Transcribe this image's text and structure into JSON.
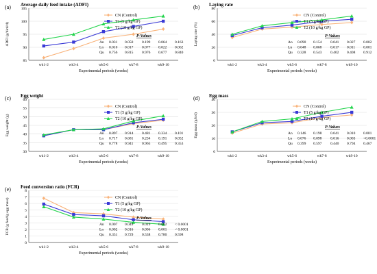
{
  "chart_data": [
    {
      "type": "line",
      "panel_label": "(a)",
      "title": "Average daily feed intake (ADFI)",
      "xlabel": "Experimental periods (weeks)",
      "ylabel": "ADFI (g/bird/d)",
      "categories": [
        "wk1-2",
        "wk3-4",
        "wk5-6",
        "wk7-8",
        "wk9-10"
      ],
      "ylim": [
        85,
        105
      ],
      "yticks": [
        85,
        90,
        95,
        100,
        105
      ],
      "legend_position": "top-right",
      "series": [
        {
          "name": "CN (Control)",
          "color": "#F9B37A",
          "marker": "diamond",
          "values": [
            86.0,
            89.5,
            93.5,
            95.0,
            97.0
          ]
        },
        {
          "name": "T1 (5 g/kg GP)",
          "color": "#3A3AD6",
          "marker": "square",
          "values": [
            90.5,
            92.0,
            96.0,
            98.0,
            100.0
          ]
        },
        {
          "name": "T2 (10 g/kg GP)",
          "color": "#22D44C",
          "marker": "triangle",
          "values": [
            93.0,
            95.0,
            99.0,
            100.5,
            102.0
          ]
        }
      ],
      "pvalues": {
        "header": "P-Values",
        "rows": [
          {
            "label": "An",
            "values": [
              "0.031",
              "0.050",
              "0.199",
              "0.064",
              "0.163"
            ]
          },
          {
            "label": "Ln",
            "values": [
              "0.010",
              "0.017",
              "0.077",
              "0.022",
              "0.062"
            ]
          },
          {
            "label": "Qu",
            "values": [
              "0.756",
              "0.815",
              "0.976",
              "0.677",
              "0.840"
            ]
          }
        ]
      }
    },
    {
      "type": "line",
      "panel_label": "(b)",
      "title": "Laying rate",
      "xlabel": "Experimental periods (weeks)",
      "ylabel": "Laying rate (%)",
      "categories": [
        "wk1-2",
        "wk3-4",
        "wk5-6",
        "wk7-8",
        "wk9-10"
      ],
      "ylim": [
        0,
        80
      ],
      "yticks": [
        0,
        20,
        40,
        60,
        80
      ],
      "legend_position": "top-right",
      "series": [
        {
          "name": "CN (Control)",
          "color": "#F9B37A",
          "marker": "diamond",
          "values": [
            35,
            48,
            51,
            55,
            58
          ]
        },
        {
          "name": "T1 (5 g/kg GP)",
          "color": "#3A3AD6",
          "marker": "square",
          "values": [
            38,
            50,
            54,
            60,
            63
          ]
        },
        {
          "name": "T2 (10 g/kg GP)",
          "color": "#22D44C",
          "marker": "triangle",
          "values": [
            40,
            53,
            58,
            62,
            68
          ]
        }
      ],
      "pvalues": {
        "header": "P-Values",
        "rows": [
          {
            "label": "An",
            "values": [
              "0.090",
              "0.154",
              "0.041",
              "0.027",
              "0.002"
            ]
          },
          {
            "label": "Ln",
            "values": [
              "0.048",
              "0.068",
              "0.017",
              "0.011",
              "0.001"
            ]
          },
          {
            "label": "Qu",
            "values": [
              "0.328",
              "0.543",
              "0.402",
              "0.408",
              "0.912"
            ]
          }
        ]
      }
    },
    {
      "type": "line",
      "panel_label": "(c)",
      "title": "Egg weight",
      "xlabel": "Experimental periods (weeks)",
      "ylabel": "Egg weight (g)",
      "categories": [
        "wk1-2",
        "wk3-4",
        "wk5-6",
        "wk7-8",
        "wk9-10"
      ],
      "ylim": [
        30,
        60
      ],
      "yticks": [
        30,
        35,
        40,
        45,
        50,
        55,
        60
      ],
      "legend_position": "top-right",
      "series": [
        {
          "name": "CN (Control)",
          "color": "#F9B37A",
          "marker": "diamond",
          "values": [
            39.0,
            42.5,
            42.5,
            46.0,
            48.0
          ]
        },
        {
          "name": "T1 (5 g/kg GP)",
          "color": "#3A3AD6",
          "marker": "square",
          "values": [
            39.0,
            42.5,
            42.5,
            46.5,
            48.5
          ]
        },
        {
          "name": "T2 (10 g/kg GP)",
          "color": "#22D44C",
          "marker": "triangle",
          "values": [
            39.5,
            42.5,
            43.0,
            47.5,
            50.5
          ]
        }
      ],
      "pvalues": {
        "header": "P-Values",
        "rows": [
          {
            "label": "An",
            "values": [
              "0.897",
              "0.914",
              "0.481",
              "0.334",
              "0.101"
            ]
          },
          {
            "label": "Ln",
            "values": [
              "0.717",
              "0.681",
              "0.234",
              "0.191",
              "0.052"
            ]
          },
          {
            "label": "Qu",
            "values": [
              "0.778",
              "0.941",
              "0.965",
              "0.495",
              "0.353"
            ]
          }
        ]
      }
    },
    {
      "type": "line",
      "panel_label": "(d)",
      "title": "Egg mass",
      "xlabel": "Experimental periods (weeks)",
      "ylabel": "Egg mass (g/h/d)",
      "categories": [
        "wk1-2",
        "wk3-4",
        "wk5-6",
        "wk7-8",
        "wk9-10"
      ],
      "ylim": [
        0,
        40
      ],
      "yticks": [
        0,
        10,
        20,
        30,
        40
      ],
      "legend_position": "top-right",
      "series": [
        {
          "name": "CN (Control)",
          "color": "#F9B37A",
          "marker": "diamond",
          "values": [
            14,
            21,
            22,
            26,
            28
          ]
        },
        {
          "name": "T1 (5 g/kg GP)",
          "color": "#3A3AD6",
          "marker": "square",
          "values": [
            15,
            22,
            23,
            27,
            30
          ]
        },
        {
          "name": "T2 (10 g/kg GP)",
          "color": "#22D44C",
          "marker": "triangle",
          "values": [
            15,
            23,
            25,
            30,
            34
          ]
        }
      ],
      "pvalues": {
        "header": "P-Values",
        "rows": [
          {
            "label": "An",
            "values": [
              "0.146",
              "0.198",
              "0.041",
              "0.010",
              "0.001"
            ]
          },
          {
            "label": "Ln",
            "values": [
              "0.076",
              "0.098",
              "0.016",
              "0.003",
              "<0.0001"
            ]
          },
          {
            "label": "Qu",
            "values": [
              "0.399",
              "0.597",
              "0.440",
              "0.794",
              "0.467"
            ]
          }
        ]
      }
    },
    {
      "type": "line",
      "panel_label": "(e)",
      "title": "Feed conversion ratio (FCR)",
      "xlabel": "Experimental periods (weeks)",
      "ylabel": "FCR (g feed/g egg mass)",
      "categories": [
        "wk1-2",
        "wk3-4",
        "wk5-6",
        "wk7-8",
        "wk9-10"
      ],
      "ylim": [
        0,
        8
      ],
      "yticks": [
        0,
        1,
        2,
        3,
        4,
        5,
        6,
        7,
        8
      ],
      "legend_position": "top-right",
      "series": [
        {
          "name": "CN (Control)",
          "color": "#F9B37A",
          "marker": "diamond",
          "values": [
            6.8,
            4.6,
            4.4,
            3.9,
            3.6
          ]
        },
        {
          "name": "T1 (5 g/kg GP)",
          "color": "#3A3AD6",
          "marker": "square",
          "values": [
            5.9,
            4.3,
            4.1,
            3.5,
            3.2
          ]
        },
        {
          "name": "T2 (10 g/kg GP)",
          "color": "#22D44C",
          "marker": "triangle",
          "values": [
            5.5,
            3.9,
            3.6,
            3.1,
            2.8
          ]
        }
      ],
      "pvalues": {
        "header": "P-Values",
        "rows": [
          {
            "label": "An",
            "values": [
              "0.007",
              "0.049",
              "0.019",
              "0.002",
              "< 0.0001"
            ]
          },
          {
            "label": "Ln",
            "values": [
              "0.002",
              "0.016",
              "0.006",
              "0.001",
              "< 0.0001"
            ]
          },
          {
            "label": "Qu",
            "values": [
              "0.351",
              "0.729",
              "0.538",
              "0.780",
              "0.598"
            ]
          }
        ]
      }
    }
  ]
}
